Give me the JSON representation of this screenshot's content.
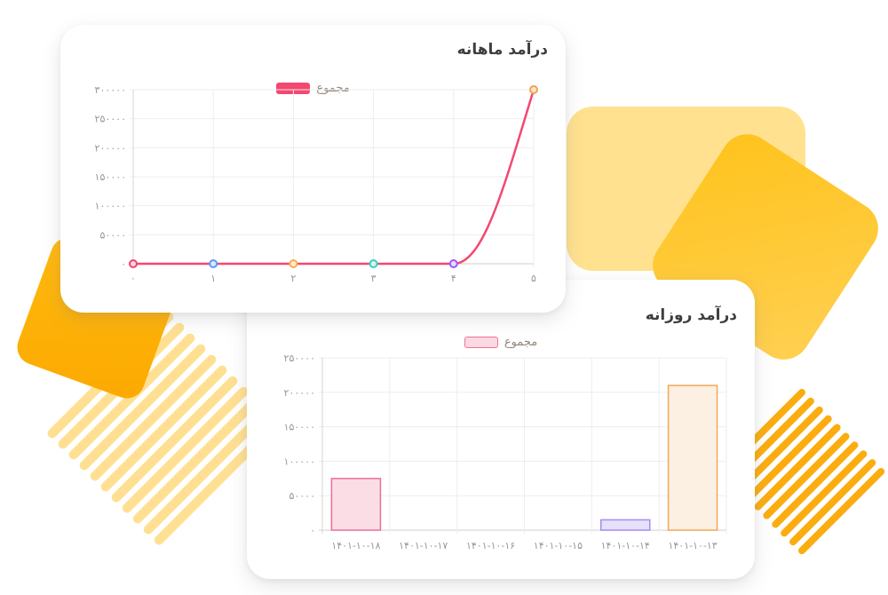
{
  "decor": {
    "light_rect_color": "#FFE18F",
    "gold_square_color": "#FFC31C",
    "amber_square_color": "#FFB103",
    "stripe_left_color": "#FFE093",
    "stripe_right_color": "#FBAD0F"
  },
  "monthly_card": {
    "title": "درآمد ماهانه",
    "legend": {
      "label": "مجموع",
      "swatch_color": "#F5476F"
    }
  },
  "daily_card": {
    "title": "درآمد روزانه",
    "legend": {
      "label": "مجموع",
      "swatch_fill": "#FBD9E2",
      "swatch_border": "#EF7396"
    }
  },
  "chart_data": [
    {
      "type": "line",
      "title": "درآمد ماهانه",
      "legend": [
        "مجموع"
      ],
      "legend_position": "top",
      "grid": true,
      "x": [
        0,
        1,
        2,
        3,
        4,
        5
      ],
      "x_tick_labels": [
        "۰",
        "۱",
        "۲",
        "۳",
        "۴",
        "۵"
      ],
      "series": [
        {
          "name": "مجموع",
          "values": [
            0,
            0,
            0,
            0,
            0,
            300000
          ],
          "line_color": "#F5476F"
        }
      ],
      "point_stroke_colors": [
        "#F0426E",
        "#5B9BF5",
        "#F6AE4F",
        "#3FCDBF",
        "#9A5CF5",
        "#F6A050"
      ],
      "point_fill_colors": [
        "#FBD7E1",
        "#D9E8FD",
        "#FCEBD2",
        "#D6F4F0",
        "#E8DBFC",
        "#FCE6D0"
      ],
      "ylim": [
        0,
        300000
      ],
      "y_tick_step": 50000,
      "y_tick_labels": [
        "۰",
        "۵۰۰۰۰",
        "۱۰۰۰۰۰",
        "۱۵۰۰۰۰",
        "۲۰۰۰۰۰",
        "۲۵۰۰۰۰",
        "۳۰۰۰۰۰"
      ]
    },
    {
      "type": "bar",
      "title": "درآمد روزانه",
      "legend": [
        "مجموع"
      ],
      "legend_position": "top",
      "grid": true,
      "categories": [
        "۱۴۰۱-۱۰-۱۸",
        "۱۴۰۱-۱۰-۱۷",
        "۱۴۰۱-۱۰-۱۶",
        "۱۴۰۱-۱۰-۱۵",
        "۱۴۰۱-۱۰-۱۴",
        "۱۴۰۱-۱۰-۱۳"
      ],
      "values": [
        75000,
        0,
        0,
        0,
        15000,
        210000
      ],
      "bar_fill_colors": [
        "#FBDDE6",
        "",
        "",
        "",
        "#E7E0FB",
        "#FBF0E2"
      ],
      "bar_border_colors": [
        "#EE6F93",
        "",
        "",
        "",
        "#A78BF5",
        "#F3A757"
      ],
      "ylim": [
        0,
        250000
      ],
      "y_tick_step": 50000,
      "y_tick_labels": [
        "۰",
        "۵۰۰۰۰",
        "۱۰۰۰۰۰",
        "۱۵۰۰۰۰",
        "۲۰۰۰۰۰",
        "۲۵۰۰۰۰"
      ]
    }
  ]
}
